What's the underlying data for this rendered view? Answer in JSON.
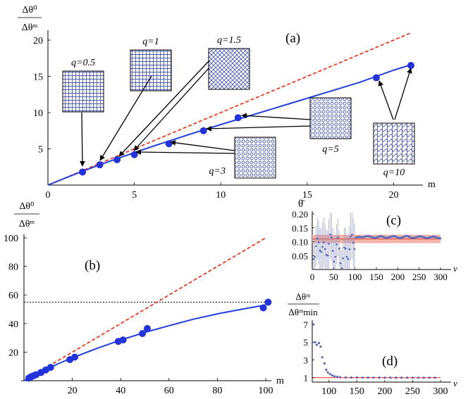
{
  "chart_data": [
    {
      "id": "a",
      "type": "scatter",
      "panel_label": "(a)",
      "ylabel_num": "Δθ⁰",
      "ylabel_den": "Δθᵐ",
      "xlabel": "m",
      "xlim": [
        0,
        22.5
      ],
      "ylim": [
        0,
        21
      ],
      "xticks": [
        0,
        5,
        10,
        15,
        20
      ],
      "yticks": [
        5,
        10,
        15,
        20
      ],
      "series": [
        {
          "name": "measured",
          "x": [
            2,
            3,
            4,
            5,
            7,
            9,
            11,
            19,
            21
          ],
          "y": [
            1.8,
            2.8,
            3.5,
            4.2,
            5.7,
            7.5,
            9.3,
            14.8,
            16.5
          ]
        },
        {
          "name": "fit",
          "x": [
            0,
            1,
            2,
            3,
            4,
            6,
            8,
            10,
            12,
            14,
            16,
            18,
            20,
            21
          ],
          "y": [
            0,
            0.96,
            1.9,
            2.8,
            3.65,
            5.3,
            6.85,
            8.35,
            9.8,
            11.25,
            12.7,
            14.15,
            15.85,
            16.6
          ]
        },
        {
          "name": "y = m",
          "x": [
            0,
            21
          ],
          "y": [
            0,
            21
          ]
        }
      ],
      "insets": [
        {
          "label": "q=0.5",
          "pointer_to_m": 2
        },
        {
          "label": "q=1",
          "pointer_to_m": 3
        },
        {
          "label": "q=1.5",
          "pointer_to_m": 4
        },
        {
          "label": "q=3",
          "pointer_to_m": [
            5,
            7
          ]
        },
        {
          "label": "q=5",
          "pointer_to_m": [
            9,
            11
          ]
        },
        {
          "label": "q=10",
          "pointer_to_m": [
            19,
            21
          ]
        }
      ]
    },
    {
      "id": "b",
      "type": "scatter",
      "panel_label": "(b)",
      "ylabel_num": "Δθ⁰",
      "ylabel_den": "Δθᵐ",
      "xlabel": "m",
      "xlim": [
        -4,
        104
      ],
      "ylim": [
        0,
        104
      ],
      "xticks": [
        20,
        40,
        60,
        80,
        100
      ],
      "yticks": [
        20,
        40,
        60,
        80,
        100
      ],
      "hline": 55,
      "series": [
        {
          "name": "measured",
          "x": [
            2,
            3,
            4,
            5,
            7,
            9,
            11,
            19,
            21,
            39,
            41,
            49,
            51,
            99,
            101
          ],
          "y": [
            1.8,
            2.8,
            3.5,
            4.2,
            5.7,
            7.5,
            9.3,
            14.8,
            16.5,
            27.5,
            28.5,
            33,
            36.5,
            51,
            55
          ]
        },
        {
          "name": "fit",
          "x": [
            0,
            5,
            10,
            15,
            20,
            30,
            40,
            50,
            60,
            70,
            80,
            90,
            100
          ],
          "y": [
            0,
            4.5,
            8.7,
            12.5,
            16,
            22.5,
            28.5,
            33.8,
            38.5,
            43,
            46.8,
            50,
            53
          ]
        },
        {
          "name": "y = m",
          "x": [
            0,
            100
          ],
          "y": [
            0,
            100
          ]
        }
      ]
    },
    {
      "id": "c",
      "type": "scatter",
      "panel_label": "(c)",
      "ylabel": "θ̄",
      "xlabel": "ν",
      "xlim": [
        0,
        305
      ],
      "ylim": [
        0,
        0.205
      ],
      "xticks": [
        0,
        50,
        100,
        150,
        200,
        250,
        300
      ],
      "yticks": [
        0.05,
        0.1,
        0.15,
        0.2
      ],
      "ytick_labels": [
        "0.05",
        "0.10",
        "0.15",
        "0.20"
      ],
      "band": [
        0.095,
        0.125
      ],
      "ref_line": 0.11,
      "series": [
        {
          "name": "mean with error bars",
          "x": [
            10,
            20,
            30,
            40,
            50,
            60,
            70,
            80,
            90,
            100,
            110,
            120,
            130,
            140,
            150,
            160,
            170,
            180,
            190,
            200,
            210,
            220,
            230,
            240,
            250,
            260,
            270,
            280,
            290,
            300
          ],
          "y": [
            0.07,
            0.1,
            0.05,
            0.11,
            0.06,
            0.08,
            0.03,
            0.06,
            0.09,
            0.11,
            0.12,
            0.118,
            0.117,
            0.118,
            0.116,
            0.117,
            0.116,
            0.118,
            0.117,
            0.116,
            0.117,
            0.118,
            0.116,
            0.117,
            0.116,
            0.117,
            0.116,
            0.115,
            0.116,
            0.115
          ]
        }
      ]
    },
    {
      "id": "d",
      "type": "scatter",
      "panel_label": "(d)",
      "ylabel_num": "Δθᵐ",
      "ylabel_den": "Δθᵐmin",
      "xlabel": "ν",
      "xlim": [
        70,
        305
      ],
      "ylim": [
        0.5,
        7.2
      ],
      "xticks": [
        100,
        150,
        200,
        250,
        300
      ],
      "yticks": [
        1,
        3,
        5,
        7
      ],
      "ref_line": 1,
      "series": [
        {
          "name": "ratio",
          "x": [
            72,
            75,
            78,
            82,
            85,
            88,
            92,
            95,
            98,
            102,
            106,
            110,
            115,
            120,
            130,
            140,
            150,
            160,
            170,
            180,
            190,
            200,
            210,
            220,
            230,
            240,
            250,
            260,
            270,
            280,
            290
          ],
          "y": [
            7,
            5,
            4.7,
            4.9,
            4.5,
            3.3,
            2.6,
            1.9,
            1.6,
            1.4,
            1.25,
            1.15,
            1.1,
            1.05,
            1.03,
            1.02,
            1.02,
            1.01,
            1.01,
            1.01,
            1.01,
            1.0,
            1.01,
            1.0,
            1.0,
            1.0,
            1.0,
            1.0,
            1.0,
            1.0,
            1.0
          ]
        }
      ]
    }
  ],
  "colors": {
    "points": "#2233dd",
    "fit": "#1f3fe0",
    "diagonal": "#ff2200",
    "band": "#f6b3a8",
    "refline": "#e34b3a",
    "scatter_small": "#5566bb"
  }
}
